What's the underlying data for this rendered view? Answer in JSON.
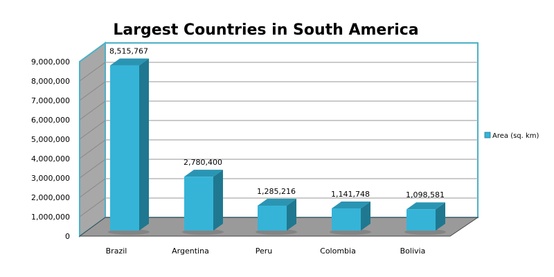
{
  "chart_data": {
    "type": "bar",
    "title": "Largest Countries in South America",
    "categories": [
      "Brazil",
      "Argentina",
      "Peru",
      "Colombia",
      "Bolivia"
    ],
    "series": [
      {
        "name": "Area (sq. km)",
        "values": [
          8515767,
          2780400,
          1285216,
          1141748,
          1098581
        ]
      }
    ],
    "data_labels": [
      "8,515,767",
      "2,780,400",
      "1,285,216",
      "1,141,748",
      "1,098,581"
    ],
    "ylim": [
      0,
      9000000
    ],
    "yticks": [
      0,
      1000000,
      2000000,
      3000000,
      4000000,
      5000000,
      6000000,
      7000000,
      8000000,
      9000000
    ],
    "ytick_labels": [
      "0",
      "1,000,000",
      "2,000,000",
      "3,000,000",
      "4,000,000",
      "5,000,000",
      "6,000,000",
      "7,000,000",
      "8,000,000",
      "9,000,000"
    ],
    "xlabel": "",
    "ylabel": "",
    "grid": true,
    "legend_position": "right",
    "colors": {
      "bar_front": "#35b4d8",
      "bar_side": "#1f7890",
      "bar_top": "#2a95b3",
      "wall": "#a8a8a8",
      "border": "#4bb0c8"
    }
  }
}
